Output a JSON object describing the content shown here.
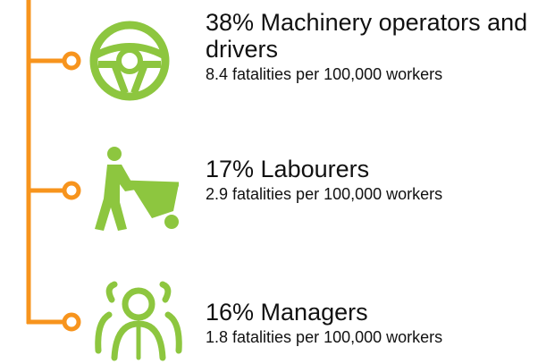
{
  "items": [
    {
      "heading": "38% Machinery operators and drivers",
      "detail": "8.4 fatalities per 100,000 workers"
    },
    {
      "heading": "17% Labourers",
      "detail": "2.9 fatalities per 100,000 workers"
    },
    {
      "heading": "16% Managers",
      "detail": "1.8 fatalities per 100,000 workers"
    }
  ]
}
